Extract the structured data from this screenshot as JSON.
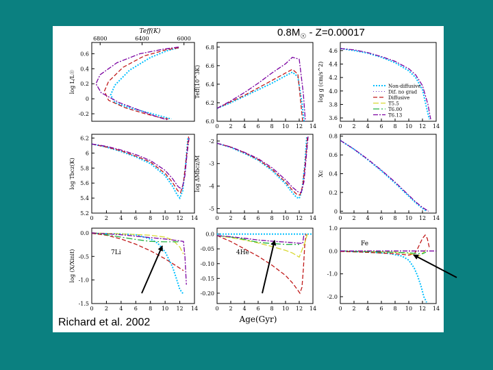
{
  "title": {
    "main": "0.8M",
    "sun": "☉",
    "rest": " - Z=0.00017"
  },
  "credit": "Richard et al. 2002",
  "colors": {
    "background": "#0b8080",
    "non_diffusive": "#00bfff",
    "dif_no_grad": "#6a2cc2",
    "diffusive": "#c01818",
    "t5": "#d8d830",
    "t600": "#20b040",
    "t613": "#7a00a0"
  },
  "chart_data": [
    {
      "id": "hr",
      "type": "line",
      "ylabel": "log L/L☉",
      "top_axis_label": "Teff(K)",
      "top_ticks": [
        "6800",
        "6400",
        "6000"
      ],
      "xlim": [
        6880,
        5900
      ],
      "ylim": [
        -0.3,
        0.75
      ],
      "yticks": [
        "0.6",
        "0.4",
        "0.2",
        "0",
        "-0.2"
      ],
      "series": [
        {
          "name": "Non-diffusive",
          "x": [
            6050,
            6160,
            6320,
            6520,
            6660,
            6700,
            6660,
            6520,
            6330,
            6200,
            6120
          ],
          "y": [
            0.68,
            0.64,
            0.55,
            0.38,
            0.18,
            0.05,
            -0.05,
            -0.12,
            -0.19,
            -0.24,
            -0.27
          ]
        },
        {
          "name": "Diffusive",
          "x": [
            6050,
            6180,
            6380,
            6580,
            6720,
            6760,
            6720,
            6560,
            6370,
            6230,
            6150
          ],
          "y": [
            0.68,
            0.65,
            0.57,
            0.42,
            0.23,
            0.1,
            -0.02,
            -0.12,
            -0.2,
            -0.25,
            -0.27
          ]
        },
        {
          "name": "T6.13",
          "x": [
            6050,
            6200,
            6420,
            6640,
            6800,
            6840,
            6790,
            6620,
            6410,
            6260,
            6160
          ],
          "y": [
            0.69,
            0.66,
            0.6,
            0.48,
            0.32,
            0.2,
            0.08,
            -0.05,
            -0.16,
            -0.24,
            -0.28
          ]
        }
      ]
    },
    {
      "id": "teff",
      "type": "line",
      "ylabel": "Teff(10^3K)",
      "xlim": [
        0,
        14
      ],
      "xticks": [
        "0",
        "2",
        "4",
        "6",
        "8",
        "10",
        "12",
        "14"
      ],
      "ylim": [
        6.0,
        6.85
      ],
      "yticks": [
        "6.8",
        "6.6",
        "6.4",
        "6.2",
        "6.0"
      ],
      "series": [
        {
          "name": "Non-diffusive",
          "x": [
            0,
            2,
            4,
            6,
            8,
            10,
            11,
            11.8,
            12.4,
            12.7
          ],
          "y": [
            6.14,
            6.2,
            6.27,
            6.34,
            6.41,
            6.49,
            6.53,
            6.48,
            6.2,
            6.0
          ]
        },
        {
          "name": "Diffusive",
          "x": [
            0,
            2,
            4,
            6,
            8,
            10,
            11,
            11.8,
            12.2,
            12.5
          ],
          "y": [
            6.14,
            6.21,
            6.28,
            6.36,
            6.44,
            6.52,
            6.56,
            6.51,
            6.22,
            6.0
          ]
        },
        {
          "name": "T6.13",
          "x": [
            0,
            2,
            4,
            6,
            8,
            10,
            11,
            12,
            12.6,
            12.9
          ],
          "y": [
            6.14,
            6.22,
            6.31,
            6.41,
            6.52,
            6.62,
            6.69,
            6.67,
            6.3,
            6.0
          ]
        }
      ]
    },
    {
      "id": "logg",
      "type": "line",
      "ylabel": "log g (cm/s^2)",
      "xlim": [
        0,
        14
      ],
      "xticks": [
        "0",
        "2",
        "4",
        "6",
        "8",
        "10",
        "12",
        "14"
      ],
      "ylim": [
        3.55,
        4.72
      ],
      "yticks": [
        "4.6",
        "4.4",
        "4.2",
        "4.0",
        "3.8",
        "3.6"
      ],
      "legend": [
        "Non-diffusive",
        "Dif. no grad",
        "Diffusive",
        "T5.5",
        "T6.00",
        "T6.13"
      ],
      "series": [
        {
          "name": "Non-diffusive",
          "x": [
            0,
            2,
            4,
            6,
            8,
            10,
            11,
            12,
            12.6,
            13
          ],
          "y": [
            4.63,
            4.6,
            4.56,
            4.5,
            4.42,
            4.3,
            4.2,
            4.02,
            3.75,
            3.58
          ]
        },
        {
          "name": "T6.13",
          "x": [
            0,
            2,
            4,
            6,
            8,
            10,
            11,
            12,
            12.8,
            13.2
          ],
          "y": [
            4.63,
            4.61,
            4.57,
            4.51,
            4.44,
            4.33,
            4.24,
            4.08,
            3.8,
            3.58
          ]
        }
      ]
    },
    {
      "id": "tbcz",
      "type": "line",
      "ylabel": "log Tbcz(K)",
      "xlim": [
        0,
        14
      ],
      "xticks": [
        "0",
        "2",
        "4",
        "6",
        "8",
        "10",
        "12",
        "14"
      ],
      "ylim": [
        5.2,
        6.25
      ],
      "yticks": [
        "6.2",
        "6",
        "5.8",
        "5.6",
        "5.4",
        "5.2"
      ],
      "series": [
        {
          "name": "Non-diffusive",
          "x": [
            0,
            2,
            4,
            6,
            8,
            10,
            11,
            11.6,
            12,
            12.4,
            12.8,
            13.1
          ],
          "y": [
            6.12,
            6.08,
            6.02,
            5.95,
            5.86,
            5.7,
            5.56,
            5.45,
            5.4,
            5.5,
            5.85,
            6.2
          ]
        },
        {
          "name": "Diffusive",
          "x": [
            0,
            2,
            4,
            6,
            8,
            10,
            11,
            11.7,
            12.1,
            12.5,
            12.9,
            13.2
          ],
          "y": [
            6.12,
            6.08,
            6.03,
            5.96,
            5.88,
            5.73,
            5.61,
            5.5,
            5.47,
            5.6,
            5.95,
            6.22
          ]
        },
        {
          "name": "T6.13",
          "x": [
            0,
            2,
            4,
            6,
            8,
            10,
            11,
            11.8,
            12.3,
            12.7,
            13,
            13.3
          ],
          "y": [
            6.12,
            6.09,
            6.04,
            5.98,
            5.9,
            5.77,
            5.66,
            5.55,
            5.52,
            5.7,
            6.0,
            6.22
          ]
        }
      ]
    },
    {
      "id": "mbcz",
      "type": "line",
      "ylabel": "log ΔMbcz/M",
      "xlim": [
        0,
        14
      ],
      "xticks": [
        "0",
        "2",
        "4",
        "6",
        "8",
        "10",
        "12",
        "14"
      ],
      "ylim": [
        -5.2,
        -1.7
      ],
      "yticks": [
        "-2",
        "-3",
        "-4",
        "-5"
      ],
      "series": [
        {
          "name": "Non-diffusive",
          "x": [
            0,
            2,
            4,
            6,
            8,
            10,
            11,
            11.6,
            12,
            12.4,
            12.8,
            13.1
          ],
          "y": [
            -2.1,
            -2.28,
            -2.55,
            -2.85,
            -3.3,
            -3.9,
            -4.3,
            -4.5,
            -4.55,
            -4.2,
            -3.1,
            -1.8
          ]
        },
        {
          "name": "Diffusive",
          "x": [
            0,
            2,
            4,
            6,
            8,
            10,
            11,
            11.7,
            12.1,
            12.5,
            12.9,
            13.2
          ],
          "y": [
            -2.1,
            -2.27,
            -2.52,
            -2.82,
            -3.25,
            -3.82,
            -4.18,
            -4.38,
            -4.4,
            -4.0,
            -2.9,
            -1.8
          ]
        },
        {
          "name": "T6.13",
          "x": [
            0,
            2,
            4,
            6,
            8,
            10,
            11,
            11.8,
            12.3,
            12.7,
            13,
            13.3
          ],
          "y": [
            -2.1,
            -2.26,
            -2.5,
            -2.78,
            -3.18,
            -3.72,
            -4.05,
            -4.25,
            -4.28,
            -3.8,
            -2.8,
            -1.8
          ]
        }
      ]
    },
    {
      "id": "xc",
      "type": "line",
      "ylabel": "Xc",
      "xlim": [
        0,
        14
      ],
      "xticks": [
        "0",
        "2",
        "4",
        "6",
        "8",
        "10",
        "12",
        "14"
      ],
      "ylim": [
        -0.02,
        0.82
      ],
      "yticks": [
        "0.8",
        "0.6",
        "0.4",
        "0.2",
        "0"
      ],
      "series": [
        {
          "name": "Non-diffusive",
          "x": [
            0,
            2,
            4,
            6,
            8,
            10,
            11,
            12,
            12.6
          ],
          "y": [
            0.755,
            0.66,
            0.55,
            0.43,
            0.3,
            0.16,
            0.09,
            0.03,
            0.0
          ]
        },
        {
          "name": "T6.13",
          "x": [
            0,
            2,
            4,
            6,
            8,
            10,
            11,
            12,
            12.9
          ],
          "y": [
            0.755,
            0.662,
            0.555,
            0.438,
            0.31,
            0.17,
            0.1,
            0.04,
            0.0
          ]
        }
      ]
    },
    {
      "id": "li",
      "type": "line",
      "ylabel": "log (X/Xinit)",
      "annotation": "7Li",
      "xlim": [
        0,
        14
      ],
      "xticks": [
        "0",
        "2",
        "4",
        "6",
        "8",
        "10",
        "12",
        "14"
      ],
      "ylim": [
        -1.5,
        0.1
      ],
      "yticks": [
        "0.0",
        "-0.5",
        "-1.0",
        "-1.5"
      ],
      "series": [
        {
          "name": "Non-diffusive",
          "x": [
            0,
            4,
            6,
            8,
            9,
            10,
            11,
            11.5,
            12,
            12.5
          ],
          "y": [
            -0.01,
            -0.02,
            -0.04,
            -0.13,
            -0.22,
            -0.4,
            -0.72,
            -0.95,
            -1.2,
            -1.3
          ]
        },
        {
          "name": "Diffusive",
          "x": [
            0,
            2,
            4,
            6,
            8,
            10,
            11,
            12,
            12.5
          ],
          "y": [
            -0.01,
            -0.05,
            -0.13,
            -0.24,
            -0.38,
            -0.55,
            -0.65,
            -0.75,
            -0.8
          ]
        },
        {
          "name": "T5.5",
          "x": [
            0,
            4,
            8,
            10,
            11,
            12,
            12.5
          ],
          "y": [
            0,
            -0.02,
            -0.05,
            -0.09,
            -0.15,
            -0.3,
            -0.45
          ]
        },
        {
          "name": "T6.00",
          "x": [
            0,
            2,
            4,
            6,
            8,
            10,
            11,
            11.8
          ],
          "y": [
            0,
            -0.04,
            -0.09,
            -0.14,
            -0.18,
            -0.19,
            -0.19,
            -0.19
          ]
        },
        {
          "name": "T6.13",
          "x": [
            0,
            4,
            8,
            10,
            11.5,
            12.5,
            12.7,
            12.9
          ],
          "y": [
            0,
            -0.04,
            -0.1,
            -0.13,
            -0.16,
            -0.18,
            -0.5,
            -1.1
          ]
        }
      ]
    },
    {
      "id": "he",
      "type": "line",
      "annotation": "4He",
      "xlim": [
        0,
        14
      ],
      "xticks": [
        "0",
        "2",
        "4",
        "6",
        "8",
        "10",
        "12",
        "14"
      ],
      "ylim": [
        -0.235,
        0.02
      ],
      "yticks": [
        "0.0",
        "-0.05",
        "-0.10",
        "-0.15",
        "-0.20"
      ],
      "series": [
        {
          "name": "Non-diffusive",
          "x": [
            0,
            12.8,
            13.4,
            14
          ],
          "y": [
            0,
            0,
            0,
            0
          ]
        },
        {
          "name": "Diffusive",
          "x": [
            0,
            2,
            4,
            6,
            8,
            10,
            11,
            11.8,
            12.1,
            12.4,
            12.6,
            12.8,
            13
          ],
          "y": [
            -0.005,
            -0.025,
            -0.05,
            -0.075,
            -0.105,
            -0.14,
            -0.165,
            -0.19,
            -0.2,
            -0.18,
            -0.12,
            -0.04,
            0.0
          ]
        },
        {
          "name": "T5.5",
          "x": [
            0,
            2,
            4,
            6,
            8,
            10,
            11,
            12,
            12.8,
            13.2
          ],
          "y": [
            -0.005,
            -0.012,
            -0.02,
            -0.03,
            -0.042,
            -0.055,
            -0.064,
            -0.078,
            -0.03,
            0.0
          ]
        },
        {
          "name": "T6.00",
          "x": [
            0,
            2,
            4,
            6,
            8,
            10,
            11,
            12
          ],
          "y": [
            -0.005,
            -0.01,
            -0.018,
            -0.028,
            -0.032,
            -0.035,
            -0.035,
            -0.035
          ]
        },
        {
          "name": "T6.13",
          "x": [
            0,
            2,
            4,
            6,
            8,
            10,
            11,
            12,
            12.5,
            12.7
          ],
          "y": [
            -0.005,
            -0.009,
            -0.014,
            -0.02,
            -0.024,
            -0.027,
            -0.029,
            -0.031,
            -0.032,
            0.0
          ]
        }
      ]
    },
    {
      "id": "fe",
      "type": "line",
      "annotation": "Fe",
      "xlabel": "Age(Gyr)",
      "xlim": [
        0,
        14
      ],
      "xticks": [
        "0",
        "2",
        "4",
        "6",
        "8",
        "10",
        "12",
        "14"
      ],
      "ylim": [
        -2.3,
        1.0
      ],
      "yticks": [
        "1.0",
        "0.0",
        "-1.0",
        "-2.0"
      ],
      "series": [
        {
          "name": "Non-diffusive",
          "x": [
            0,
            4,
            7,
            9,
            10,
            10.8,
            11.3,
            11.8,
            12.2,
            12.6
          ],
          "y": [
            0,
            -0.05,
            -0.1,
            -0.22,
            -0.4,
            -0.75,
            -1.1,
            -1.55,
            -2.0,
            -2.25
          ]
        },
        {
          "name": "Diffusive",
          "x": [
            0,
            4,
            8,
            10,
            10.8,
            11.2,
            11.6,
            12,
            12.4,
            12.7,
            13
          ],
          "y": [
            -0.02,
            -0.06,
            -0.12,
            -0.18,
            -0.12,
            0.05,
            0.3,
            0.55,
            0.7,
            0.55,
            0.15
          ]
        },
        {
          "name": "T5.5",
          "x": [
            0,
            4,
            8,
            10,
            11,
            11.5,
            12,
            12.5
          ],
          "y": [
            0,
            -0.02,
            -0.05,
            -0.1,
            -0.18,
            -0.22,
            -0.1,
            0.05
          ]
        },
        {
          "name": "T6.00",
          "x": [
            0,
            4,
            8,
            10,
            11,
            12,
            12.5
          ],
          "y": [
            0,
            -0.03,
            -0.06,
            -0.08,
            -0.1,
            -0.12,
            -0.05
          ]
        },
        {
          "name": "T6.13",
          "x": [
            0,
            14
          ],
          "y": [
            0,
            0
          ]
        }
      ]
    }
  ]
}
